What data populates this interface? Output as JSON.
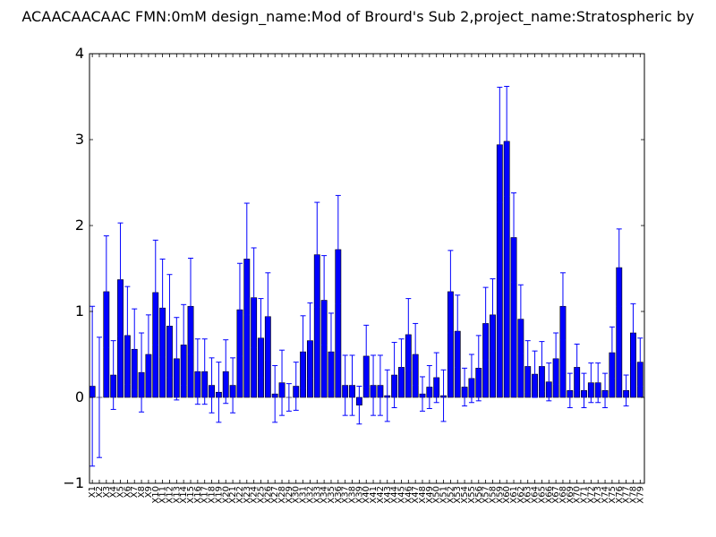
{
  "chart_data": {
    "type": "bar",
    "title": "ACAACAACAAC  FMN:0mM  design_name:Mod of Brourd's Sub 2,project_name:Stratospheric by",
    "xlabel": "",
    "ylabel": "",
    "ylim": [
      -1,
      4
    ],
    "yticks": [
      -1,
      0,
      1,
      2,
      3,
      4
    ],
    "grid": false,
    "bar_color": "#0000ff",
    "error_color": "#0000ff",
    "categories": [
      "X1",
      "X2",
      "X3",
      "X4",
      "X5",
      "X6",
      "X7",
      "X8",
      "X9",
      "X10",
      "X11",
      "X12",
      "X13",
      "X14",
      "X15",
      "X16",
      "X17",
      "X18",
      "X19",
      "X20",
      "X21",
      "X22",
      "X23",
      "X24",
      "X25",
      "X26",
      "X27",
      "X28",
      "X29",
      "X30",
      "X31",
      "X32",
      "X33",
      "X34",
      "X35",
      "X36",
      "X37",
      "X38",
      "X39",
      "X40",
      "X41",
      "X42",
      "X43",
      "X44",
      "X45",
      "X46",
      "X47",
      "X48",
      "X49",
      "X50",
      "X51",
      "X52",
      "X53",
      "X54",
      "X55",
      "X56",
      "X57",
      "X58",
      "X59",
      "X60",
      "X61",
      "X62",
      "X63",
      "X64",
      "X65",
      "X66",
      "X67",
      "X68",
      "X69",
      "X70",
      "X71",
      "X72",
      "X73",
      "X74",
      "X75",
      "X76",
      "X77",
      "X78",
      "X79"
    ],
    "values": [
      0.13,
      0.0,
      1.23,
      0.26,
      1.37,
      0.72,
      0.56,
      0.29,
      0.5,
      1.22,
      1.04,
      0.83,
      0.45,
      0.61,
      1.06,
      0.3,
      0.3,
      0.14,
      0.06,
      0.3,
      0.14,
      1.02,
      1.61,
      1.16,
      0.69,
      0.94,
      0.04,
      0.17,
      0.0,
      0.13,
      0.53,
      0.66,
      1.66,
      1.13,
      0.53,
      1.72,
      0.14,
      0.14,
      -0.09,
      0.48,
      0.14,
      0.14,
      0.02,
      0.26,
      0.35,
      0.73,
      0.5,
      0.04,
      0.12,
      0.23,
      0.02,
      1.23,
      0.77,
      0.12,
      0.22,
      0.34,
      0.86,
      0.96,
      2.94,
      2.98,
      1.86,
      0.91,
      0.36,
      0.27,
      0.36,
      0.18,
      0.45,
      1.06,
      0.08,
      0.35,
      0.08,
      0.17,
      0.17,
      0.08,
      0.52,
      1.51,
      0.08,
      0.75,
      0.41
    ],
    "errors": [
      0.93,
      0.7,
      0.65,
      0.4,
      0.66,
      0.57,
      0.47,
      0.46,
      0.46,
      0.61,
      0.57,
      0.6,
      0.48,
      0.47,
      0.56,
      0.38,
      0.38,
      0.32,
      0.35,
      0.37,
      0.32,
      0.54,
      0.65,
      0.58,
      0.46,
      0.51,
      0.33,
      0.38,
      0.16,
      0.28,
      0.42,
      0.44,
      0.61,
      0.52,
      0.45,
      0.63,
      0.35,
      0.35,
      0.22,
      0.36,
      0.35,
      0.35,
      0.3,
      0.38,
      0.33,
      0.42,
      0.36,
      0.2,
      0.25,
      0.29,
      0.3,
      0.48,
      0.42,
      0.22,
      0.28,
      0.38,
      0.42,
      0.42,
      0.67,
      0.64,
      0.52,
      0.4,
      0.3,
      0.27,
      0.29,
      0.22,
      0.3,
      0.39,
      0.2,
      0.27,
      0.2,
      0.23,
      0.23,
      0.2,
      0.3,
      0.45,
      0.18,
      0.34,
      0.28
    ]
  }
}
